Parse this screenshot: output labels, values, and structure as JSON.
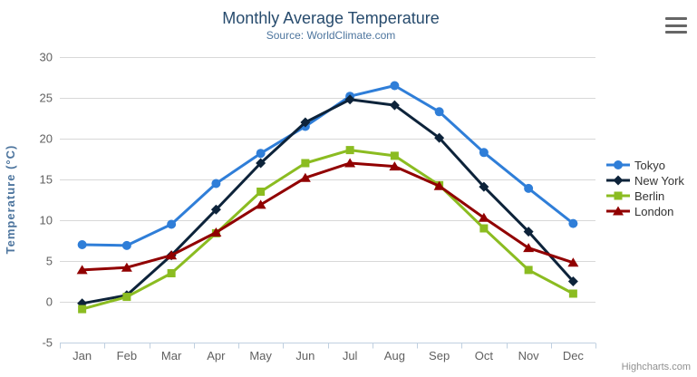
{
  "chart": {
    "title": "Monthly Average Temperature",
    "subtitle": "Source: WorldClimate.com",
    "credit": "Highcharts.com",
    "export_menu_icon": "hamburger-menu-icon"
  },
  "colors": {
    "title_text": "#274b6d",
    "subtitle_text": "#4d759e",
    "axis_title_text": "#4d759e",
    "axis_label_text": "#606060",
    "gridline": "#d8d8d8",
    "axis_line": "#c0d0e0",
    "legend_text": "#333333",
    "credit_text": "#909090",
    "menu_icon": "#666666"
  },
  "chart_data": {
    "type": "line",
    "title": "Monthly Average Temperature",
    "subtitle": "Source: WorldClimate.com",
    "xlabel": "",
    "ylabel": "Temperature (°C)",
    "ylim": [
      -5,
      30
    ],
    "ytick_interval": 5,
    "ytick_labels": [
      "-5",
      "0",
      "5",
      "10",
      "15",
      "20",
      "25",
      "30"
    ],
    "grid": true,
    "legend_position": "right",
    "categories": [
      "Jan",
      "Feb",
      "Mar",
      "Apr",
      "May",
      "Jun",
      "Jul",
      "Aug",
      "Sep",
      "Oct",
      "Nov",
      "Dec"
    ],
    "series": [
      {
        "name": "Tokyo",
        "color": "#2f7ed8",
        "marker": "circle",
        "values": [
          7.0,
          6.9,
          9.5,
          14.5,
          18.2,
          21.5,
          25.2,
          26.5,
          23.3,
          18.3,
          13.9,
          9.6
        ]
      },
      {
        "name": "New York",
        "color": "#0d233a",
        "marker": "diamond",
        "values": [
          -0.2,
          0.8,
          5.7,
          11.3,
          17.0,
          22.0,
          24.8,
          24.1,
          20.1,
          14.1,
          8.6,
          2.5
        ]
      },
      {
        "name": "Berlin",
        "color": "#8bbc21",
        "marker": "square",
        "values": [
          -0.9,
          0.6,
          3.5,
          8.4,
          13.5,
          17.0,
          18.6,
          17.9,
          14.3,
          9.0,
          3.9,
          1.0
        ]
      },
      {
        "name": "London",
        "color": "#910000",
        "marker": "triangle",
        "values": [
          3.9,
          4.2,
          5.7,
          8.5,
          11.9,
          15.2,
          17.0,
          16.6,
          14.2,
          10.3,
          6.6,
          4.8
        ]
      }
    ]
  }
}
